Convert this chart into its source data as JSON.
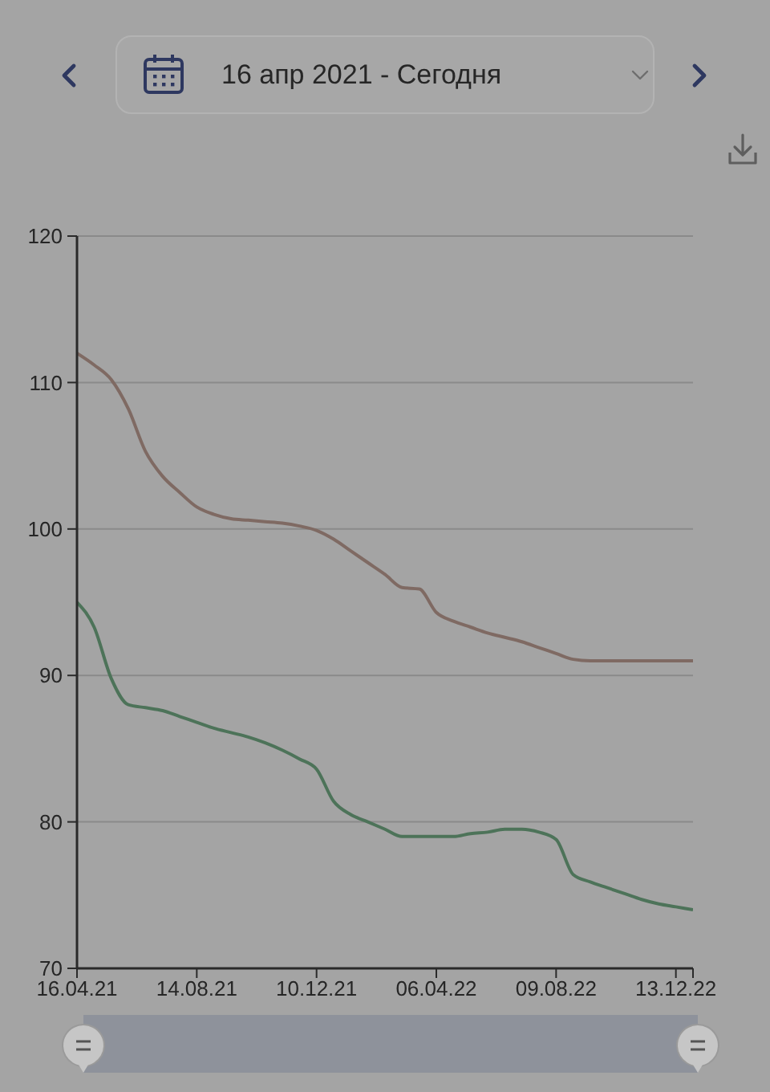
{
  "chart_data": {
    "type": "line",
    "annotations": [
      "16 апр 2021 - Сегодня"
    ],
    "categories": [
      "16.04.21",
      null,
      null,
      null,
      null,
      null,
      null,
      "14.08.21",
      null,
      null,
      null,
      null,
      null,
      null,
      "10.12.21",
      null,
      null,
      null,
      null,
      null,
      null,
      "06.04.22",
      null,
      null,
      null,
      null,
      null,
      null,
      "09.08.22",
      null,
      null,
      null,
      null,
      null,
      null,
      "13.12.22",
      null
    ],
    "series": [
      {
        "color": "#7f6a63",
        "values": [
          112.0,
          111.2,
          110.2,
          108.2,
          105.3,
          103.6,
          102.5,
          101.5,
          101.0,
          100.7,
          100.6,
          100.5,
          100.4,
          100.2,
          99.9,
          99.3,
          98.5,
          97.7,
          96.9,
          96.0,
          95.9,
          94.3,
          93.7,
          93.3,
          92.9,
          92.6,
          92.3,
          91.9,
          91.5,
          91.1,
          91.0,
          91.0,
          91.0,
          91.0,
          91.0,
          91.0,
          91.0
        ]
      },
      {
        "color": "#4d7359",
        "values": [
          95.0,
          93.3,
          89.8,
          88.0,
          87.8,
          87.6,
          87.2,
          86.8,
          86.4,
          86.1,
          85.8,
          85.4,
          84.9,
          84.3,
          83.6,
          81.4,
          80.5,
          80.0,
          79.5,
          79.0,
          79.0,
          79.0,
          79.0,
          79.2,
          79.3,
          79.5,
          79.5,
          79.3,
          78.8,
          76.4,
          75.9,
          75.5,
          75.1,
          74.7,
          74.4,
          74.2,
          74.0
        ]
      }
    ],
    "ylim": [
      70,
      120
    ],
    "yticks": [
      70,
      80,
      90,
      100,
      110,
      120
    ],
    "grid": "y",
    "line_style": "solid"
  }
}
